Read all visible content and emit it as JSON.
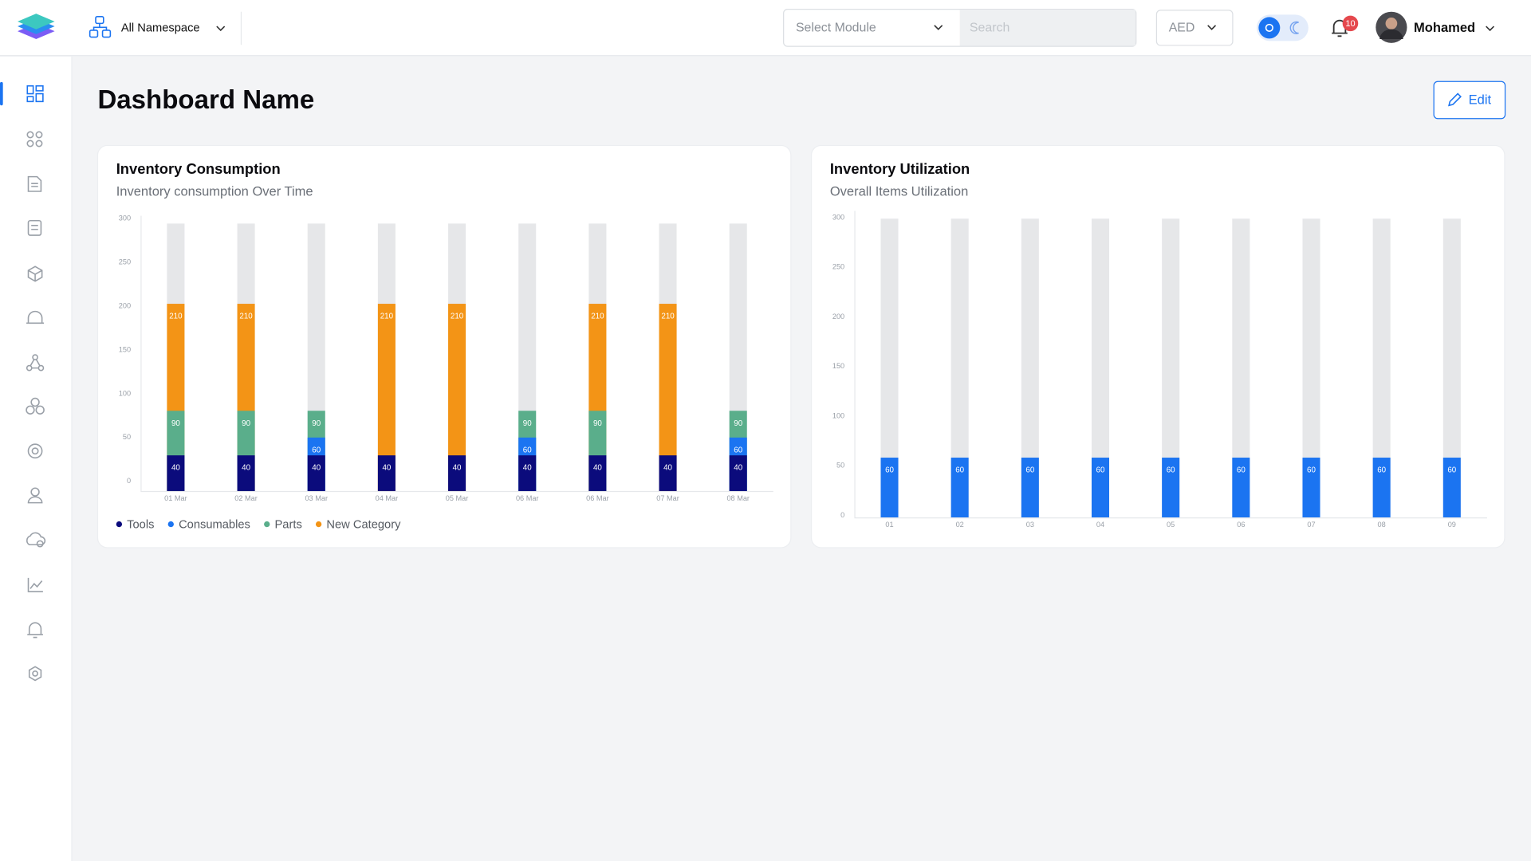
{
  "header": {
    "namespace": "All Namespace",
    "module_placeholder": "Select Module",
    "search_placeholder": "Search",
    "currency": "AED",
    "notifications": 10,
    "user": "Mohamed"
  },
  "page": {
    "title": "Dashboard Name",
    "edit": "Edit"
  },
  "chart_data": [
    {
      "type": "bar",
      "stacked": false,
      "title": "Inventory Consumption",
      "subtitle": "Inventory consumption Over Time",
      "categories": [
        "01 Mar",
        "02 Mar",
        "03 Mar",
        "04 Mar",
        "05 Mar",
        "06 Mar",
        "06 Mar",
        "07 Mar",
        "08 Mar"
      ],
      "series": [
        {
          "name": "Tools",
          "color": "#0b0b7c",
          "values": [
            40,
            40,
            40,
            40,
            40,
            40,
            40,
            40,
            40
          ]
        },
        {
          "name": "Consumables",
          "color": "#1b74f1",
          "values": [
            null,
            null,
            60,
            null,
            null,
            60,
            null,
            null,
            60
          ]
        },
        {
          "name": "Parts",
          "color": "#5aae8b",
          "values": [
            90,
            90,
            90,
            null,
            null,
            90,
            90,
            null,
            90
          ]
        },
        {
          "name": "New Category",
          "color": "#f39416",
          "values": [
            210,
            210,
            null,
            210,
            210,
            null,
            210,
            210,
            null
          ]
        }
      ],
      "ylim": [
        0,
        300
      ],
      "yticks": [
        0,
        50,
        100,
        150,
        200,
        250,
        300
      ],
      "grid": false,
      "legend": "bottom-left"
    },
    {
      "type": "bar",
      "title": "Inventory Utilization",
      "subtitle": "Overall Items Utilization",
      "categories": [
        "01",
        "02",
        "03",
        "04",
        "05",
        "06",
        "07",
        "08",
        "09"
      ],
      "values": [
        60,
        60,
        60,
        60,
        60,
        60,
        60,
        60,
        60
      ],
      "color": "#1b74f1",
      "ylim": [
        0,
        300
      ],
      "yticks": [
        0,
        50,
        100,
        150,
        200,
        250,
        300
      ],
      "grid": false
    }
  ]
}
